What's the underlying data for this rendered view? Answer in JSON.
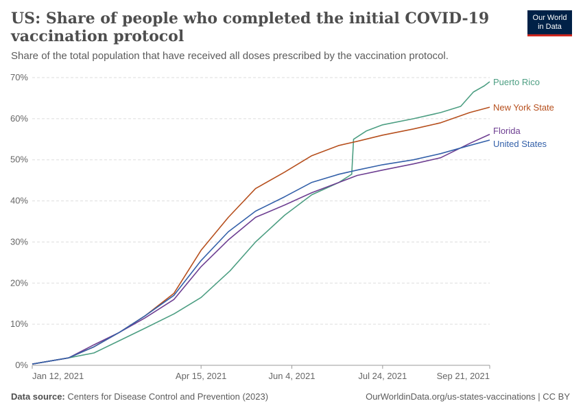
{
  "title": "US: Share of people who completed the initial COVID-19 vaccination protocol",
  "subtitle": "Share of the total population that have received all doses prescribed by the vaccination protocol.",
  "logo": {
    "line1": "Our World",
    "line2": "in Data"
  },
  "footer": {
    "source_label": "Data source:",
    "source_text": "Centers for Disease Control and Prevention (2023)",
    "right_text": "OurWorldinData.org/us-states-vaccinations | CC BY"
  },
  "chart_data": {
    "type": "line",
    "ylim": [
      0,
      70
    ],
    "y_ticks": [
      0,
      10,
      20,
      30,
      40,
      50,
      60,
      70
    ],
    "y_tick_labels": [
      "0%",
      "10%",
      "20%",
      "30%",
      "40%",
      "50%",
      "60%",
      "70%"
    ],
    "x_ticks": [
      {
        "date": "2021-01-12",
        "label": "Jan 12, 2021"
      },
      {
        "date": "2021-04-15",
        "label": "Apr 15, 2021"
      },
      {
        "date": "2021-06-04",
        "label": "Jun 4, 2021"
      },
      {
        "date": "2021-07-24",
        "label": "Jul 24, 2021"
      },
      {
        "date": "2021-09-21",
        "label": "Sep 21, 2021"
      }
    ],
    "xlim": [
      "2021-01-12",
      "2021-09-21"
    ],
    "grid": "horizontal-dashed",
    "legend": "right-end-labels",
    "series": [
      {
        "name": "Puerto Rico",
        "color": "#4c9e82",
        "points": [
          [
            "2021-01-12",
            0.3
          ],
          [
            "2021-02-01",
            1.8
          ],
          [
            "2021-02-15",
            3.0
          ],
          [
            "2021-03-01",
            6.0
          ],
          [
            "2021-03-15",
            9.0
          ],
          [
            "2021-03-31",
            12.5
          ],
          [
            "2021-04-15",
            16.5
          ],
          [
            "2021-05-01",
            23.0
          ],
          [
            "2021-05-15",
            30.0
          ],
          [
            "2021-05-31",
            36.5
          ],
          [
            "2021-06-15",
            41.5
          ],
          [
            "2021-06-30",
            44.5
          ],
          [
            "2021-07-07",
            46.5
          ],
          [
            "2021-07-08",
            55.0
          ],
          [
            "2021-07-15",
            57.0
          ],
          [
            "2021-07-24",
            58.5
          ],
          [
            "2021-08-10",
            60.0
          ],
          [
            "2021-08-25",
            61.5
          ],
          [
            "2021-09-05",
            63.0
          ],
          [
            "2021-09-12",
            66.5
          ],
          [
            "2021-09-18",
            68.0
          ],
          [
            "2021-09-21",
            69.0
          ]
        ]
      },
      {
        "name": "New York State",
        "color": "#b64f1d",
        "points": [
          [
            "2021-01-12",
            0.3
          ],
          [
            "2021-02-01",
            1.8
          ],
          [
            "2021-02-15",
            4.5
          ],
          [
            "2021-03-01",
            8.0
          ],
          [
            "2021-03-15",
            12.0
          ],
          [
            "2021-03-31",
            17.5
          ],
          [
            "2021-04-15",
            28.0
          ],
          [
            "2021-04-30",
            36.0
          ],
          [
            "2021-05-15",
            43.0
          ],
          [
            "2021-05-31",
            47.0
          ],
          [
            "2021-06-15",
            51.0
          ],
          [
            "2021-06-30",
            53.5
          ],
          [
            "2021-07-10",
            54.5
          ],
          [
            "2021-07-24",
            56.0
          ],
          [
            "2021-08-10",
            57.5
          ],
          [
            "2021-08-25",
            59.0
          ],
          [
            "2021-09-10",
            61.5
          ],
          [
            "2021-09-21",
            62.8
          ]
        ]
      },
      {
        "name": "Florida",
        "color": "#6d3e91",
        "points": [
          [
            "2021-01-12",
            0.3
          ],
          [
            "2021-02-01",
            1.8
          ],
          [
            "2021-02-15",
            5.0
          ],
          [
            "2021-03-01",
            8.0
          ],
          [
            "2021-03-15",
            11.5
          ],
          [
            "2021-03-31",
            16.0
          ],
          [
            "2021-04-15",
            24.0
          ],
          [
            "2021-04-30",
            30.5
          ],
          [
            "2021-05-15",
            36.0
          ],
          [
            "2021-05-31",
            39.0
          ],
          [
            "2021-06-15",
            42.0
          ],
          [
            "2021-06-30",
            44.5
          ],
          [
            "2021-07-10",
            46.2
          ],
          [
            "2021-07-24",
            47.5
          ],
          [
            "2021-08-10",
            49.0
          ],
          [
            "2021-08-25",
            50.5
          ],
          [
            "2021-09-10",
            54.0
          ],
          [
            "2021-09-21",
            56.2
          ]
        ]
      },
      {
        "name": "United States",
        "color": "#3360a9",
        "points": [
          [
            "2021-01-12",
            0.3
          ],
          [
            "2021-02-01",
            1.8
          ],
          [
            "2021-02-15",
            4.5
          ],
          [
            "2021-03-01",
            8.0
          ],
          [
            "2021-03-15",
            12.0
          ],
          [
            "2021-03-31",
            17.0
          ],
          [
            "2021-04-15",
            25.5
          ],
          [
            "2021-04-30",
            32.5
          ],
          [
            "2021-05-15",
            37.5
          ],
          [
            "2021-05-31",
            41.0
          ],
          [
            "2021-06-15",
            44.5
          ],
          [
            "2021-06-30",
            46.5
          ],
          [
            "2021-07-10",
            47.5
          ],
          [
            "2021-07-24",
            48.8
          ],
          [
            "2021-08-10",
            50.0
          ],
          [
            "2021-08-25",
            51.5
          ],
          [
            "2021-09-10",
            53.5
          ],
          [
            "2021-09-21",
            54.8
          ]
        ]
      }
    ]
  }
}
